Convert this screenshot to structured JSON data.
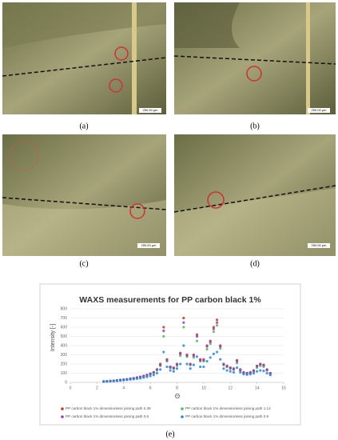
{
  "panels": [
    {
      "label": "(a)",
      "scale": "250.00 µm"
    },
    {
      "label": "(b)",
      "scale": "250.00 µm"
    },
    {
      "label": "(c)",
      "scale": "250.00 µm"
    },
    {
      "label": "(d)",
      "scale": "250.00 µm"
    }
  ],
  "figure_label": "(e)",
  "chart_data": {
    "type": "scatter",
    "title": "WAXS measurements for PP carbon black 1%",
    "x_label": "Θ",
    "y_label": "Intensity [-]",
    "xlim": [
      0,
      16
    ],
    "xticks": [
      0,
      2,
      4,
      6,
      8,
      10,
      12,
      14,
      16
    ],
    "ylim": [
      0,
      800
    ],
    "yticks": [
      0,
      100,
      200,
      300,
      400,
      500,
      600,
      700,
      800
    ],
    "grid": true,
    "legend": "bottom",
    "x": [
      2.5,
      2.75,
      3,
      3.25,
      3.5,
      3.75,
      4,
      4.25,
      4.5,
      4.75,
      5,
      5.25,
      5.5,
      5.75,
      6,
      6.25,
      6.5,
      6.75,
      7,
      7.25,
      7.5,
      7.75,
      8,
      8.25,
      8.5,
      8.75,
      9,
      9.25,
      9.5,
      9.75,
      10,
      10.25,
      10.5,
      10.75,
      11,
      11.25,
      11.5,
      11.75,
      12,
      12.25,
      12.5,
      12.75,
      13,
      13.25,
      13.5,
      13.75,
      14,
      14.25,
      14.5,
      14.75,
      15
    ],
    "series": [
      {
        "name": "PP carbon black 1% dimensionless joining path 0.38",
        "color": "#c0392b",
        "values": [
          10,
          12,
          15,
          18,
          22,
          26,
          30,
          34,
          40,
          45,
          52,
          60,
          70,
          80,
          95,
          110,
          140,
          200,
          600,
          250,
          170,
          160,
          200,
          320,
          700,
          300,
          200,
          300,
          520,
          250,
          250,
          400,
          450,
          600,
          680,
          400,
          200,
          180,
          160,
          150,
          240,
          140,
          110,
          100,
          110,
          130,
          180,
          200,
          190,
          140,
          100
        ]
      },
      {
        "name": "PP carbon black 1% dimensionless joining path 1.14",
        "color": "#5cb85c",
        "values": [
          10,
          12,
          14,
          17,
          20,
          24,
          28,
          32,
          37,
          42,
          48,
          55,
          65,
          75,
          88,
          100,
          130,
          180,
          500,
          230,
          160,
          150,
          180,
          290,
          600,
          280,
          190,
          270,
          450,
          230,
          230,
          360,
          420,
          550,
          620,
          370,
          190,
          170,
          150,
          140,
          210,
          130,
          100,
          95,
          100,
          120,
          160,
          180,
          170,
          130,
          95
        ]
      },
      {
        "name": "PP carbon black 1% dimensionless joining path 0.6",
        "color": "#8e44ad",
        "values": [
          10,
          12,
          15,
          18,
          22,
          26,
          30,
          34,
          40,
          45,
          52,
          60,
          70,
          80,
          95,
          110,
          140,
          190,
          560,
          240,
          165,
          155,
          195,
          310,
          650,
          290,
          195,
          290,
          500,
          240,
          240,
          390,
          440,
          580,
          650,
          390,
          195,
          175,
          155,
          145,
          230,
          135,
          105,
          100,
          105,
          125,
          175,
          195,
          185,
          135,
          100
        ]
      },
      {
        "name": "PP carbon black 1% dimensionless joining path 0.9",
        "color": "#2e86de",
        "values": [
          8,
          10,
          12,
          14,
          17,
          20,
          24,
          28,
          32,
          36,
          40,
          45,
          52,
          60,
          70,
          80,
          100,
          140,
          330,
          170,
          130,
          120,
          150,
          200,
          400,
          200,
          150,
          190,
          280,
          170,
          170,
          230,
          270,
          310,
          330,
          250,
          150,
          130,
          120,
          110,
          160,
          110,
          90,
          85,
          90,
          100,
          120,
          130,
          125,
          100,
          80
        ]
      }
    ]
  }
}
